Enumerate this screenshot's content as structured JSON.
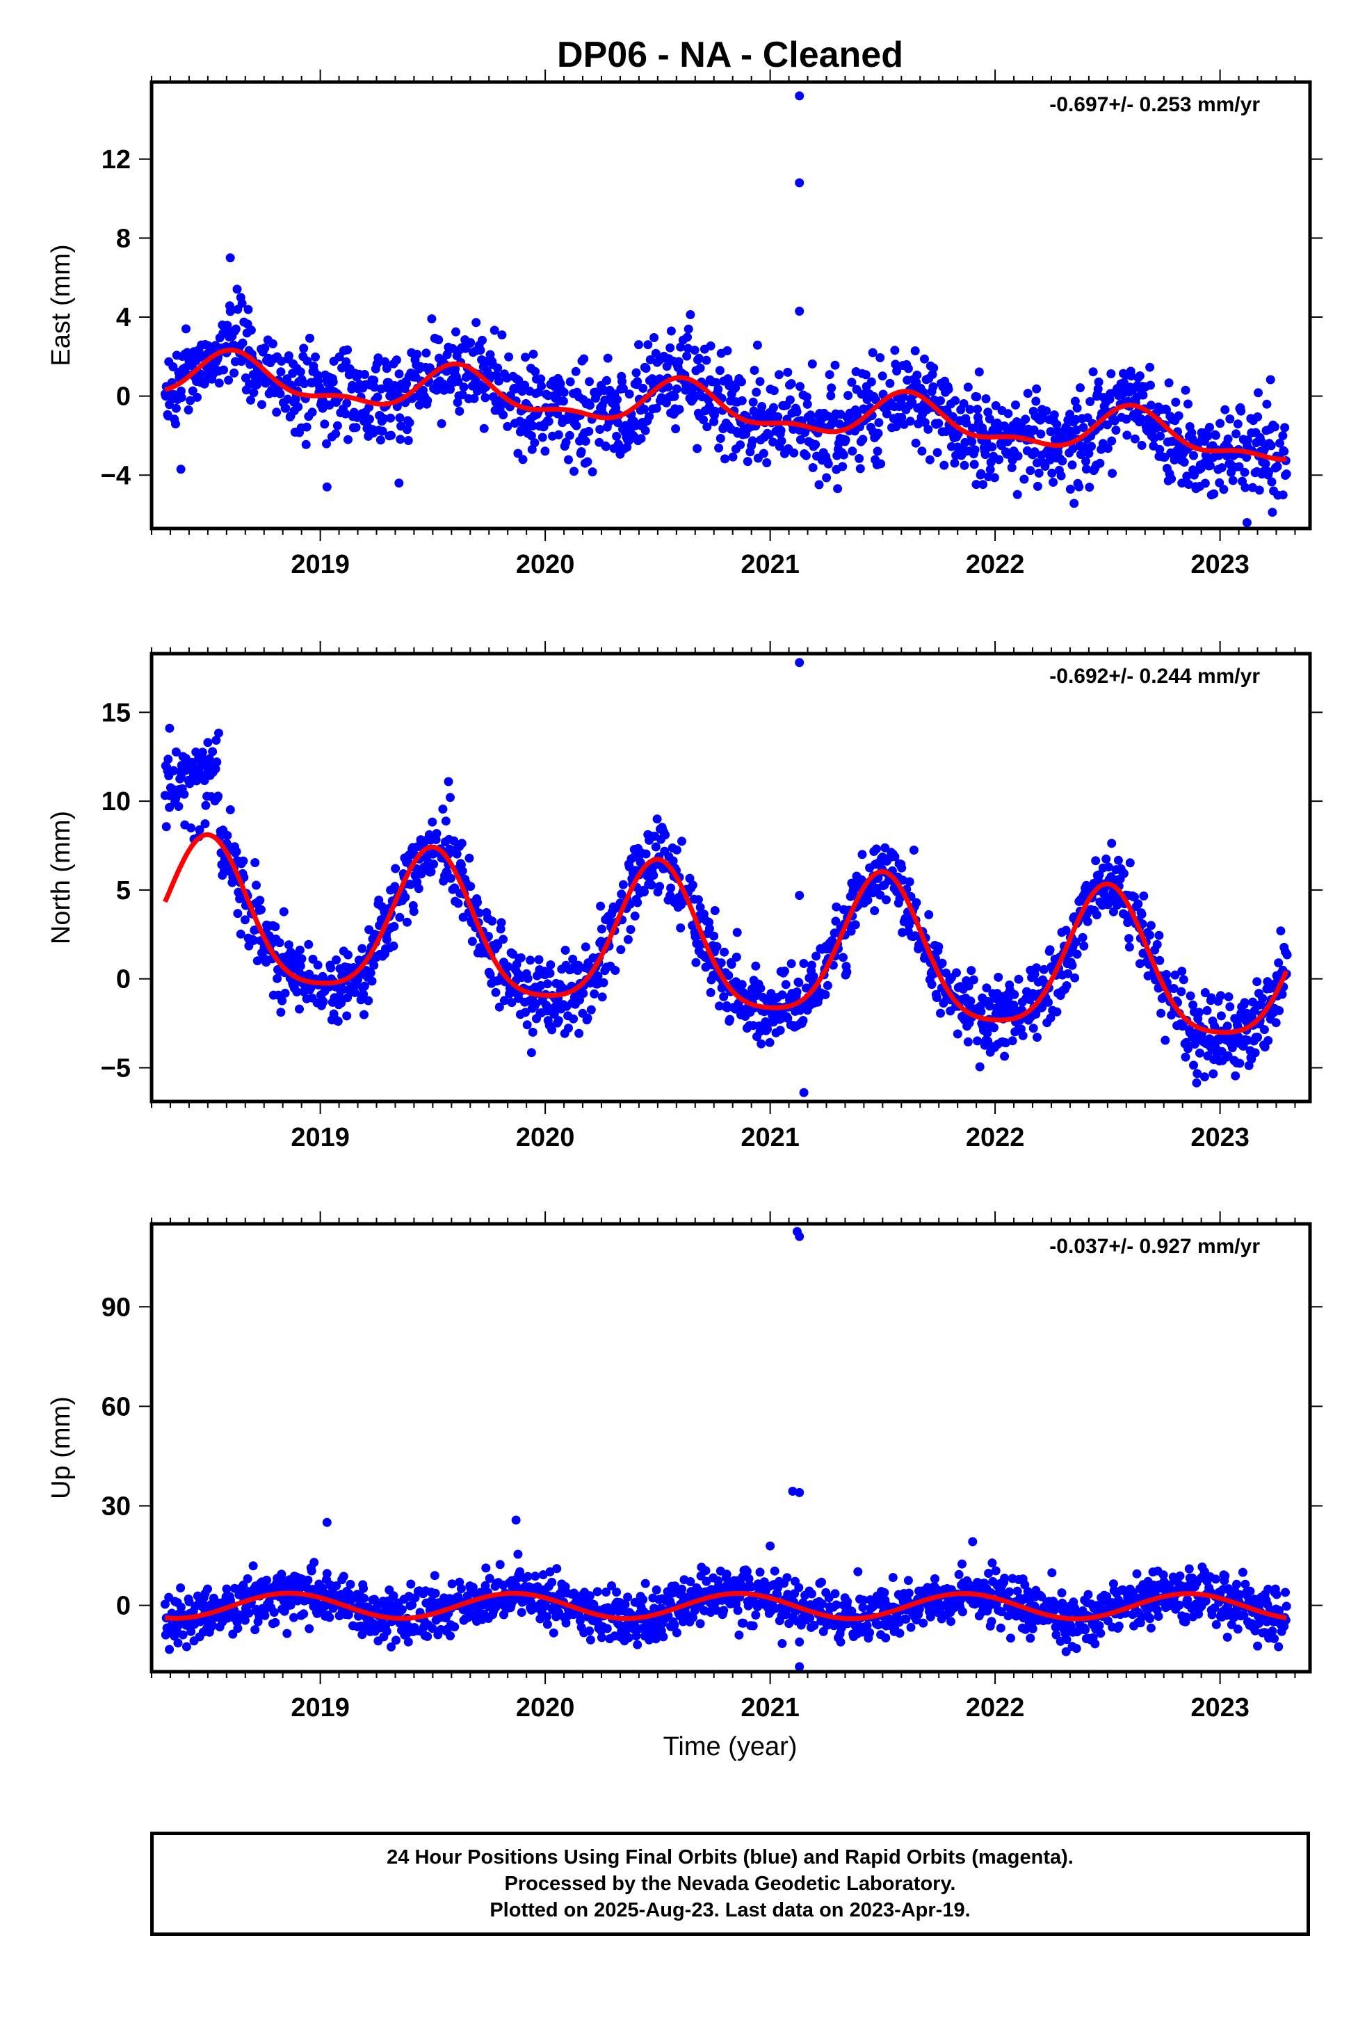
{
  "title": "DP06  - NA - Cleaned",
  "xlabel": "Time (year)",
  "colors": {
    "points": "#0000ff",
    "fit": "#ff0000",
    "axes": "#000000"
  },
  "caption": {
    "line1": "24 Hour Positions Using Final Orbits (blue) and Rapid Orbits (magenta).",
    "line2": "Processed by the Nevada Geodetic Laboratory.",
    "line3": "Plotted on 2025-Aug-23. Last data on 2023-Apr-19."
  },
  "chart_data": [
    {
      "type": "scatter",
      "component": "east",
      "ylabel": "East (mm)",
      "rate_label": "-0.697+/- 0.253 mm/yr",
      "xlim": [
        2018.25,
        2023.4
      ],
      "ylim": [
        -6.7,
        15.9
      ],
      "xticks": [
        2019,
        2020,
        2021,
        2022,
        2023
      ],
      "yticks": [
        -4,
        0,
        4,
        8,
        12
      ],
      "grid": false,
      "fit": {
        "a0": 1.1,
        "rate": -0.697,
        "t0": 2018.3,
        "ann_amp": 1.0,
        "ann_peak": 2018.62,
        "semi_amp": 0.45,
        "semi_peak": 2018.6
      },
      "scatter_noise": 1.2,
      "outliers": [
        {
          "x": 2021.13,
          "y": 15.2
        },
        {
          "x": 2021.13,
          "y": 10.8
        },
        {
          "x": 2021.13,
          "y": 4.3
        },
        {
          "x": 2018.38,
          "y": -3.7
        },
        {
          "x": 2019.03,
          "y": -4.6
        },
        {
          "x": 2019.35,
          "y": -4.4
        },
        {
          "x": 2023.12,
          "y": -6.4
        },
        {
          "x": 2023.28,
          "y": -5.0
        },
        {
          "x": 2018.6,
          "y": 7.0
        }
      ]
    },
    {
      "type": "scatter",
      "component": "north",
      "ylabel": "North (mm)",
      "rate_label": "-0.692+/- 0.244 mm/yr",
      "xlim": [
        2018.25,
        2023.4
      ],
      "ylim": [
        -6.9,
        18.3
      ],
      "xticks": [
        2019,
        2020,
        2021,
        2022,
        2023
      ],
      "yticks": [
        -5,
        0,
        5,
        10,
        15
      ],
      "grid": false,
      "fit": {
        "a0": 3.45,
        "rate": -0.692,
        "t0": 2018.3,
        "ann_amp": 4.0,
        "ann_peak": 2018.5,
        "semi_amp": 0.8,
        "semi_peak": 2018.5
      },
      "scatter_noise": 1.1,
      "outliers": [
        {
          "x": 2021.13,
          "y": 17.8
        },
        {
          "x": 2021.13,
          "y": 4.7
        },
        {
          "x": 2021.15,
          "y": -6.4
        },
        {
          "x": 2018.33,
          "y": 14.1
        },
        {
          "x": 2018.5,
          "y": 13.3
        },
        {
          "x": 2019.57,
          "y": 11.1
        },
        {
          "x": 2023.27,
          "y": 2.7
        }
      ],
      "early_offset": {
        "until": 2018.55,
        "value": 11.0
      }
    },
    {
      "type": "scatter",
      "component": "up",
      "ylabel": "Up (mm)",
      "rate_label": "-0.037+/- 0.927 mm/yr",
      "xlim": [
        2018.25,
        2023.4
      ],
      "ylim": [
        -20,
        115
      ],
      "xticks": [
        2019,
        2020,
        2021,
        2022,
        2023
      ],
      "yticks": [
        0,
        30,
        60,
        90
      ],
      "grid": false,
      "fit": {
        "a0": -0.1,
        "rate": -0.037,
        "t0": 2018.3,
        "ann_amp": 3.8,
        "ann_peak": 2018.86,
        "semi_amp": 0.0,
        "semi_peak": 2018.5
      },
      "scatter_noise": 4.0,
      "outliers": [
        {
          "x": 2021.12,
          "y": 112.7
        },
        {
          "x": 2021.13,
          "y": 111.2
        },
        {
          "x": 2021.1,
          "y": 34.4
        },
        {
          "x": 2021.13,
          "y": 34.0
        },
        {
          "x": 2019.03,
          "y": 25.0
        },
        {
          "x": 2019.87,
          "y": 25.7
        },
        {
          "x": 2021.13,
          "y": -18.5
        },
        {
          "x": 2021.0,
          "y": 17.9
        },
        {
          "x": 2021.9,
          "y": 19.2
        }
      ]
    }
  ]
}
